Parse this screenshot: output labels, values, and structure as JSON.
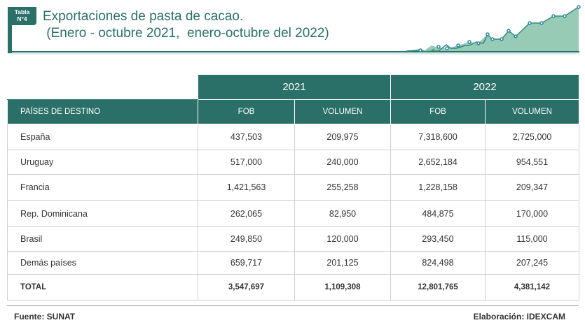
{
  "header": {
    "badge_line1": "Tabla",
    "badge_line2": "N°4",
    "title_line1": "Exportaciones de pasta de cacao.",
    "title_line2": " (Enero - octubre 2021,  enero-octubre del 2022)"
  },
  "colors": {
    "accent": "#2a7068"
  },
  "table": {
    "years": [
      "2021",
      "2022"
    ],
    "columns": [
      "PAÍSES DE DESTINO",
      "FOB",
      "VOLUMEN",
      "FOB",
      "VOLUMEN"
    ],
    "rows": [
      [
        "España",
        "437,503",
        "209,975",
        "7,318,600",
        "2,725,000"
      ],
      [
        "Uruguay",
        "517,000",
        "240,000",
        "2,652,184",
        "954,551"
      ],
      [
        "Francia",
        "1,421,563",
        "255,258",
        "1,228,158",
        "209,347"
      ],
      [
        "Rep. Dominicana",
        "262,065",
        "82,950",
        "484,875",
        "170,000"
      ],
      [
        "Brasil",
        "249,850",
        "120,000",
        "293,450",
        "115,000"
      ],
      [
        "Demás países",
        "659,717",
        "201,125",
        "824,498",
        "207,245"
      ]
    ],
    "total": [
      "TOTAL",
      "3,547,697",
      "1,109,308",
      "12,801,765",
      "4,381,142"
    ]
  },
  "footer": {
    "source": "Fuente: SUNAT",
    "credit": "Elaboración: IDEXCAM"
  }
}
